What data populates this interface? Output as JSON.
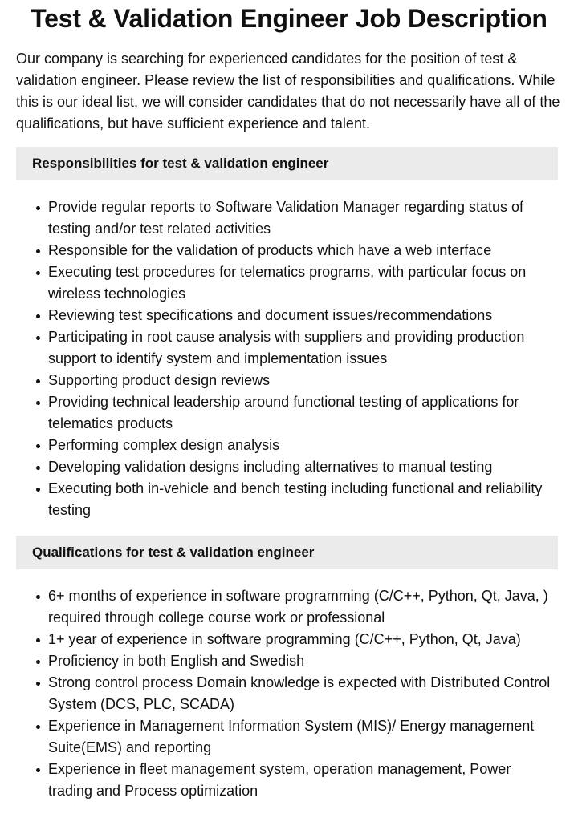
{
  "title": "Test & Validation Engineer Job Description",
  "intro": "Our company is searching for experienced candidates for the position of test & validation engineer. Please review the list of responsibilities and qualifications. While this is our ideal list, we will consider candidates that do not necessarily have all of the qualifications, but have sufficient experience and talent.",
  "responsibilities": {
    "heading": "Responsibilities for test & validation engineer",
    "items": [
      "Provide regular reports to Software Validation Manager regarding status of testing and/or test related activities",
      "Responsible for the validation of products which have a web interface",
      "Executing test procedures for telematics programs, with particular focus on wireless technologies",
      "Reviewing test specifications and document issues/recommendations",
      "Participating in root cause analysis with suppliers and providing production support to identify system and implementation issues",
      "Supporting product design reviews",
      "Providing technical leadership around functional testing of applications for telematics products",
      "Performing complex design analysis",
      "Developing validation designs including alternatives to manual testing",
      "Executing both in-vehicle and bench testing including functional and reliability testing"
    ]
  },
  "qualifications": {
    "heading": "Qualifications for test & validation engineer",
    "items": [
      "6+ months of experience in software programming (C/C++, Python, Qt, Java, ) required through college course work or professional",
      "1+ year of experience in software programming (C/C++, Python, Qt, Java)",
      "Proficiency in both English and Swedish",
      "Strong control process Domain knowledge is expected with Distributed Control System (DCS, PLC, SCADA)",
      "Experience in Management Information System (MIS)/ Energy management Suite(EMS) and reporting",
      "Experience in fleet management system, operation management, Power trading and Process optimization"
    ]
  }
}
